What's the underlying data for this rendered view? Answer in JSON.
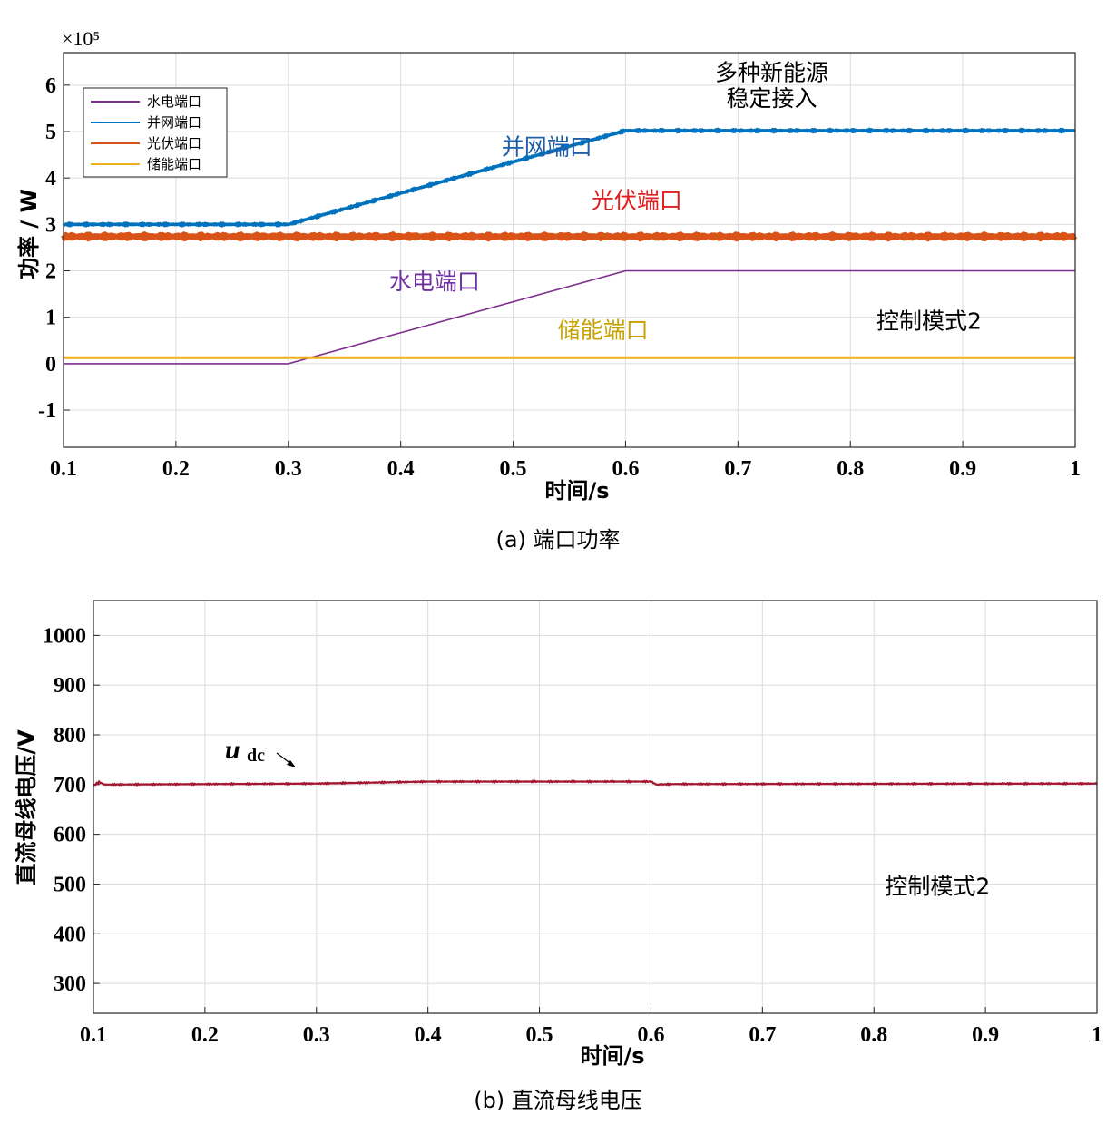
{
  "chart_data": [
    {
      "type": "line",
      "caption": "(a)   端口功率",
      "ylabel": "功率 / W",
      "xlabel": "时间/s",
      "exponent_label": "×10⁵",
      "xlim": [
        0.1,
        1.0
      ],
      "ylim": [
        -1.8,
        6.7
      ],
      "x_ticks": [
        0.1,
        0.2,
        0.3,
        0.4,
        0.5,
        0.6,
        0.7,
        0.8,
        0.9,
        1.0
      ],
      "x_tick_labels": [
        "0.1",
        "0.2",
        "0.3",
        "0.4",
        "0.5",
        "0.6",
        "0.7",
        "0.8",
        "0.9",
        "1"
      ],
      "y_ticks": [
        -1,
        0,
        1,
        2,
        3,
        4,
        5,
        6
      ],
      "y_tick_labels": [
        "-1",
        "0",
        "1",
        "2",
        "3",
        "4",
        "5",
        "6"
      ],
      "grid": true,
      "legend_position": "top-left",
      "series": [
        {
          "name": "水电端口",
          "color": "#7E2F8E",
          "x": [
            0.1,
            0.3,
            0.6,
            1.0
          ],
          "values": [
            0,
            0,
            2.0,
            2.0
          ],
          "ripple": 0,
          "width": 1.6
        },
        {
          "name": "并网端口",
          "color": "#0072BD",
          "x": [
            0.1,
            0.3,
            0.6,
            1.0
          ],
          "values": [
            3.0,
            3.0,
            5.02,
            5.02
          ],
          "ripple": 0.03,
          "width": 3.5
        },
        {
          "name": "光伏端口",
          "color": "#D95319",
          "x": [
            0.1,
            1.0
          ],
          "values": [
            2.74,
            2.74
          ],
          "ripple": 0.05,
          "width": 6
        },
        {
          "name": "储能端口",
          "color": "#EDB120",
          "x": [
            0.1,
            1.0
          ],
          "values": [
            0.13,
            0.13
          ],
          "ripple": 0,
          "width": 3
        }
      ],
      "annotations": [
        {
          "text": "多种新能源",
          "x": 0.73,
          "y": 6.1,
          "color": "#000000"
        },
        {
          "text": "稳定接入",
          "x": 0.73,
          "y": 5.55,
          "color": "#000000"
        },
        {
          "text": "并网端口",
          "x": 0.53,
          "y": 4.5,
          "color": "#1F5FA8"
        },
        {
          "text": "光伏端口",
          "x": 0.61,
          "y": 3.35,
          "color": "#E21D1D"
        },
        {
          "text": "水电端口",
          "x": 0.43,
          "y": 1.6,
          "color": "#7030A0"
        },
        {
          "text": "储能端口",
          "x": 0.58,
          "y": 0.55,
          "color": "#C9A100"
        },
        {
          "text": "控制模式2",
          "x": 0.87,
          "y": 0.75,
          "color": "#000000"
        }
      ]
    },
    {
      "type": "line",
      "caption": "(b)   直流母线电压",
      "ylabel": "直流母线电压/V",
      "xlabel": "时间/s",
      "xlim": [
        0.1,
        1.0
      ],
      "ylim": [
        240,
        1070
      ],
      "x_ticks": [
        0.1,
        0.2,
        0.3,
        0.4,
        0.5,
        0.6,
        0.7,
        0.8,
        0.9,
        1.0
      ],
      "x_tick_labels": [
        "0.1",
        "0.2",
        "0.3",
        "0.4",
        "0.5",
        "0.6",
        "0.7",
        "0.8",
        "0.9",
        "1"
      ],
      "y_ticks": [
        300,
        400,
        500,
        600,
        700,
        800,
        900,
        1000
      ],
      "y_tick_labels": [
        "300",
        "400",
        "500",
        "600",
        "700",
        "800",
        "900",
        "1000"
      ],
      "grid": true,
      "series": [
        {
          "name": "udc",
          "color": "#A2142F",
          "x": [
            0.1,
            0.105,
            0.11,
            0.3,
            0.4,
            0.6,
            0.605,
            0.62,
            1.0
          ],
          "values": [
            698,
            705,
            700,
            702,
            706,
            706,
            700,
            701,
            702
          ],
          "ripple": 1.8,
          "width": 2.2
        }
      ],
      "series_label": {
        "main": "u",
        "sub": "dc"
      },
      "annotations": [
        {
          "text": "控制模式2",
          "x": 0.857,
          "y": 480,
          "color": "#000000"
        }
      ]
    }
  ]
}
